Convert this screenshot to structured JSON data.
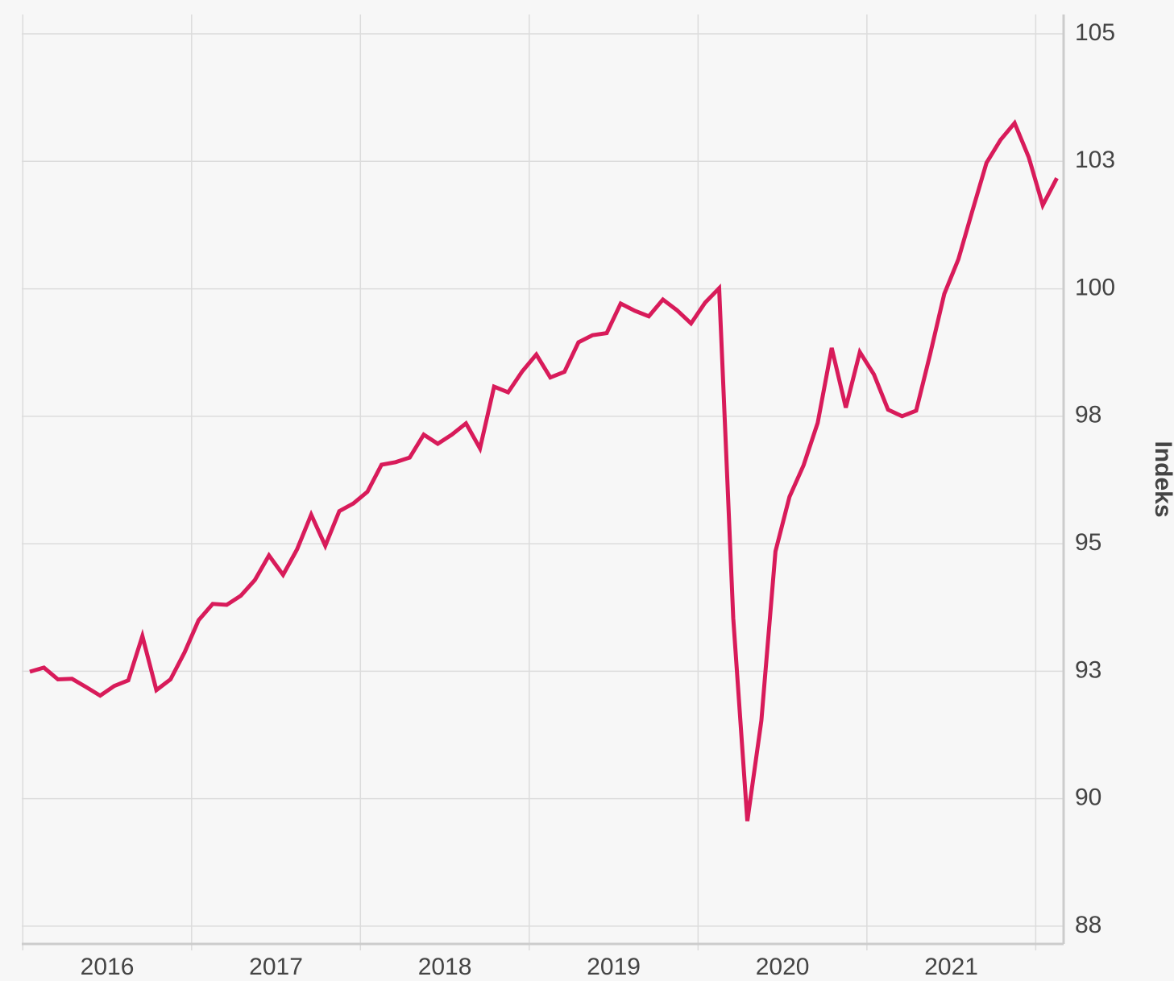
{
  "chart_data": {
    "type": "line",
    "y_label": "Indeks",
    "xticks": [
      "2016",
      "2017",
      "2018",
      "2019",
      "2020",
      "2021"
    ],
    "series": [
      {
        "color": "#d81b5a",
        "values": [
          92.49,
          92.57,
          92.34,
          92.35,
          92.19,
          92.02,
          92.21,
          92.32,
          93.19,
          92.13,
          92.34,
          92.87,
          93.5,
          93.82,
          93.8,
          93.98,
          94.29,
          94.77,
          94.39,
          94.89,
          95.57,
          94.96,
          95.64,
          95.79,
          96.02,
          96.55,
          96.6,
          96.69,
          97.14,
          96.96,
          97.14,
          97.36,
          96.87,
          98.08,
          97.97,
          98.38,
          98.71,
          98.26,
          98.37,
          98.95,
          99.09,
          99.13,
          99.71,
          99.57,
          99.46,
          99.79,
          99.58,
          99.32,
          99.73,
          100.01,
          93.54,
          89.56,
          91.53,
          94.85,
          95.92,
          96.54,
          97.37,
          98.84,
          97.67,
          98.76,
          98.32,
          97.63,
          97.5,
          97.61,
          98.72,
          99.9,
          100.58,
          101.53,
          102.47,
          102.92,
          103.25,
          102.58,
          101.64,
          102.17
        ]
      }
    ],
    "ylim": [
      87.15,
      105.38
    ],
    "yticks": [
      {
        "value": 87.5,
        "label": "88"
      },
      {
        "value": 90,
        "label": "90"
      },
      {
        "value": 92.5,
        "label": "93"
      },
      {
        "value": 95,
        "label": "95"
      },
      {
        "value": 97.5,
        "label": "98"
      },
      {
        "value": 100,
        "label": "100"
      },
      {
        "value": 102.5,
        "label": "103"
      },
      {
        "value": 105,
        "label": "105"
      }
    ],
    "grid": true
  }
}
